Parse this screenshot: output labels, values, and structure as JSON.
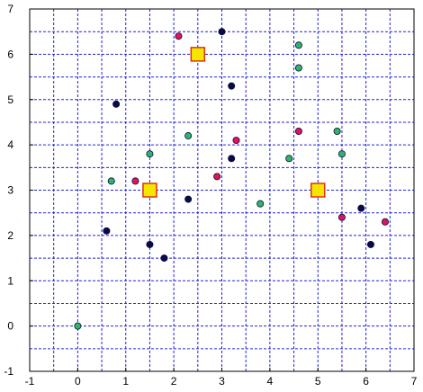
{
  "chart_data": {
    "type": "scatter",
    "title": "",
    "xlabel": "",
    "ylabel": "",
    "xlim": [
      -1,
      7
    ],
    "ylim": [
      -1,
      7
    ],
    "x_ticks": [
      -1,
      0,
      1,
      2,
      3,
      4,
      5,
      6,
      7
    ],
    "y_ticks": [
      -1,
      0,
      1,
      2,
      3,
      4,
      5,
      6,
      7
    ],
    "x_minor_grid_step": 0.5,
    "y_minor_grid_step": 0.5,
    "grid": true,
    "grid_color": "#2222dd",
    "series": [
      {
        "marker": "circle",
        "color": "#e0145a",
        "points": [
          {
            "x": 2.1,
            "y": 6.4
          },
          {
            "x": 3.3,
            "y": 4.1
          },
          {
            "x": 4.6,
            "y": 4.3
          },
          {
            "x": 1.2,
            "y": 3.2
          },
          {
            "x": 2.9,
            "y": 3.3
          },
          {
            "x": 5.5,
            "y": 2.4
          },
          {
            "x": 6.4,
            "y": 2.3
          }
        ]
      },
      {
        "marker": "circle",
        "color": "#2fb56a",
        "points": [
          {
            "x": 4.6,
            "y": 6.2
          },
          {
            "x": 4.6,
            "y": 5.7
          },
          {
            "x": 1.5,
            "y": 3.8
          },
          {
            "x": 2.3,
            "y": 4.2
          },
          {
            "x": 0.7,
            "y": 3.2
          },
          {
            "x": 4.4,
            "y": 3.7
          },
          {
            "x": 5.4,
            "y": 4.3
          },
          {
            "x": 5.5,
            "y": 3.8
          },
          {
            "x": 3.8,
            "y": 2.7
          },
          {
            "x": 0.0,
            "y": 0.0
          }
        ]
      },
      {
        "marker": "circle",
        "color": "#0a0a4a",
        "points": [
          {
            "x": 3.0,
            "y": 6.5
          },
          {
            "x": 3.2,
            "y": 5.3
          },
          {
            "x": 0.8,
            "y": 4.9
          },
          {
            "x": 3.2,
            "y": 3.7
          },
          {
            "x": 2.3,
            "y": 2.8
          },
          {
            "x": 0.6,
            "y": 2.1
          },
          {
            "x": 1.5,
            "y": 1.8
          },
          {
            "x": 1.8,
            "y": 1.5
          },
          {
            "x": 5.9,
            "y": 2.6
          },
          {
            "x": 6.1,
            "y": 1.8
          }
        ]
      },
      {
        "marker": "square",
        "color": "#f5e600",
        "edge_color": "#e03010",
        "points": [
          {
            "x": 2.5,
            "y": 6.0
          },
          {
            "x": 1.5,
            "y": 3.0
          },
          {
            "x": 5.0,
            "y": 3.0
          }
        ]
      }
    ]
  }
}
